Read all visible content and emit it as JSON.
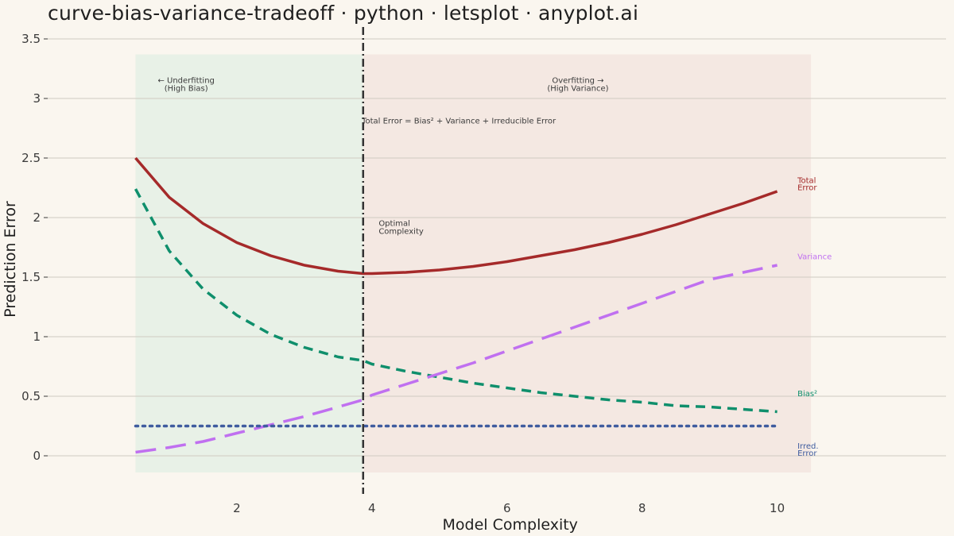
{
  "title": "curve-bias-variance-tradeoff · python · letsplot · anyplot.ai",
  "chart_data": {
    "type": "line",
    "xlabel": "Model Complexity",
    "ylabel": "Prediction Error",
    "xlim": [
      -0.8,
      12.5
    ],
    "ylim": [
      -0.32,
      3.6
    ],
    "x_ticks": [
      2,
      4,
      6,
      8,
      10
    ],
    "x_tick_labels": [
      "2",
      "4",
      "6",
      "8",
      "10"
    ],
    "y_ticks": [
      0,
      0.5,
      1,
      1.5,
      2,
      2.5,
      3,
      3.5
    ],
    "y_tick_labels": [
      "0",
      "0.5",
      "1",
      "1.5",
      "2",
      "2.5",
      "3",
      "3.5"
    ],
    "grid": "horizontal",
    "legend": "none",
    "x": [
      0.5,
      1.0,
      1.5,
      2.0,
      2.5,
      3.0,
      3.5,
      3.87,
      4.0,
      4.5,
      5.0,
      5.5,
      6.0,
      6.5,
      7.0,
      7.5,
      8.0,
      8.5,
      9.0,
      9.5,
      10.0
    ],
    "series": [
      {
        "name": "Total Error",
        "label_lines": [
          "Total",
          "Error"
        ],
        "color": "#a52a2a",
        "dash": "solid",
        "values": [
          2.5,
          2.17,
          1.95,
          1.79,
          1.68,
          1.6,
          1.55,
          1.53,
          1.53,
          1.54,
          1.56,
          1.59,
          1.63,
          1.68,
          1.73,
          1.79,
          1.86,
          1.94,
          2.03,
          2.12,
          2.22
        ]
      },
      {
        "name": "Bias²",
        "label_lines": [
          "Bias²"
        ],
        "color": "#0f8f6c",
        "dash": "dashed",
        "values": [
          2.24,
          1.72,
          1.4,
          1.18,
          1.02,
          0.91,
          0.83,
          0.8,
          0.77,
          0.71,
          0.66,
          0.61,
          0.57,
          0.53,
          0.5,
          0.47,
          0.45,
          0.42,
          0.41,
          0.39,
          0.37
        ]
      },
      {
        "name": "Variance",
        "label_lines": [
          "Variance"
        ],
        "color": "#c070f0",
        "dash": "longdash",
        "values": [
          0.03,
          0.07,
          0.12,
          0.19,
          0.26,
          0.33,
          0.41,
          0.47,
          0.51,
          0.6,
          0.69,
          0.78,
          0.88,
          0.98,
          1.08,
          1.18,
          1.28,
          1.38,
          1.48,
          1.54,
          1.6
        ]
      },
      {
        "name": "Irred. Error",
        "label_lines": [
          "Irred.",
          "Error"
        ],
        "color": "#3f5c9f",
        "dash": "dotted",
        "values": [
          0.25,
          0.25,
          0.25,
          0.25,
          0.25,
          0.25,
          0.25,
          0.25,
          0.25,
          0.25,
          0.25,
          0.25,
          0.25,
          0.25,
          0.25,
          0.25,
          0.25,
          0.25,
          0.25,
          0.25,
          0.25
        ]
      }
    ],
    "regions": [
      {
        "x_start": 0.5,
        "x_end": 3.87,
        "y_start": -0.14,
        "y_end": 3.37,
        "color": "#e8f1e7"
      },
      {
        "x_start": 3.87,
        "x_end": 10.5,
        "y_start": -0.14,
        "y_end": 3.37,
        "color": "#f4e8e2"
      }
    ],
    "optimal_x": 3.87,
    "annotations": [
      {
        "lines": [
          "← Underfitting",
          "(High Bias)"
        ],
        "x": 1.25,
        "y": 3.13,
        "anchor": "middle"
      },
      {
        "lines": [
          "Overfitting →",
          "(High Variance)"
        ],
        "x": 7.05,
        "y": 3.13,
        "anchor": "middle"
      },
      {
        "lines": [
          "Total Error = Bias² + Variance + Irreducible Error"
        ],
        "x": 3.85,
        "y": 2.79,
        "anchor": "start"
      },
      {
        "lines": [
          "Optimal",
          "Complexity"
        ],
        "x": 4.1,
        "y": 1.93,
        "anchor": "start"
      }
    ],
    "series_label_x": 10.3
  }
}
